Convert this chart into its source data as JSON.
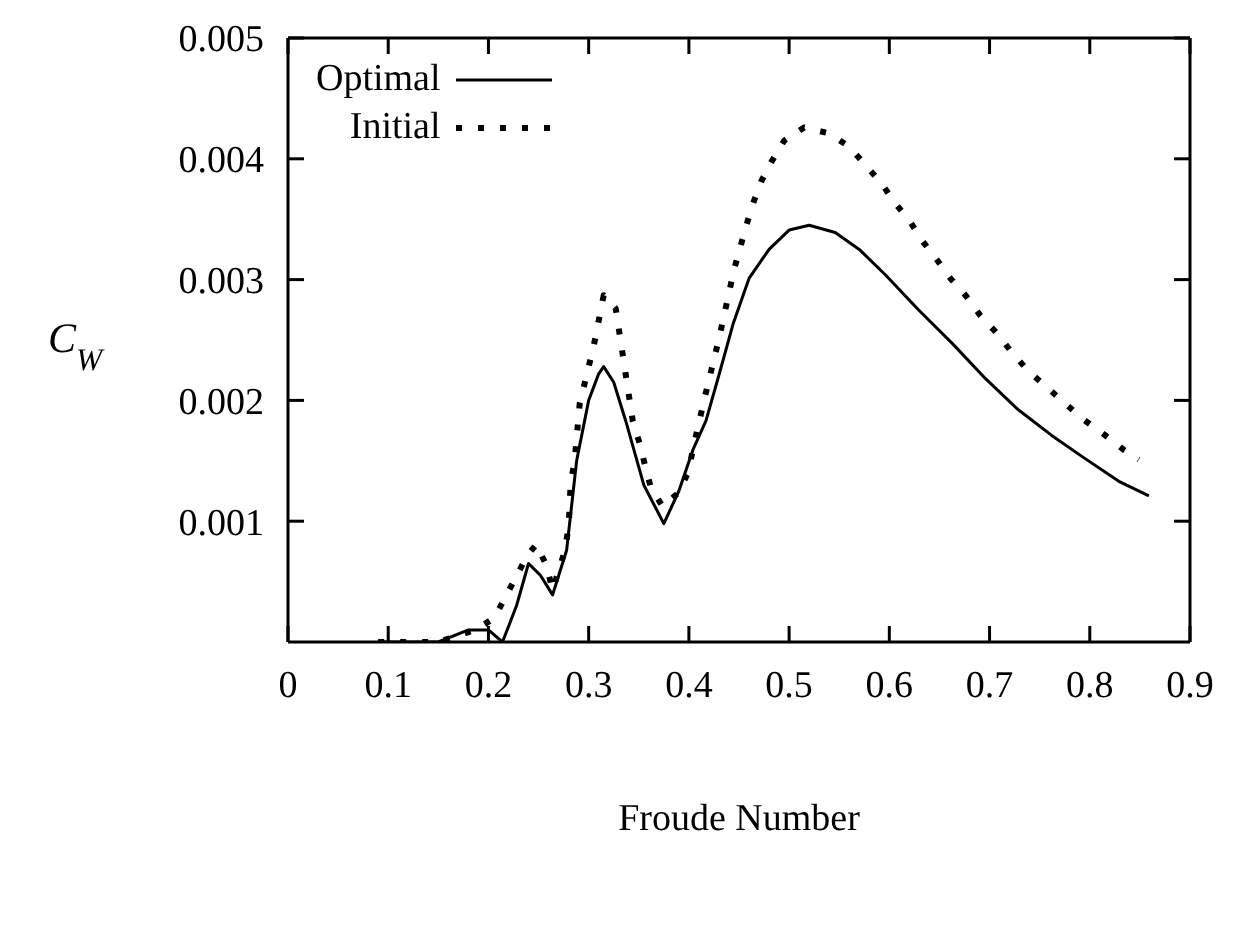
{
  "chart_data": {
    "type": "line",
    "xlabel": "Froude Number",
    "ylabel": "C$_{W}$",
    "xlim": [
      0,
      0.9
    ],
    "xticks": [
      0,
      0.1,
      0.2,
      0.3,
      0.4,
      0.5,
      0.6,
      0.7,
      0.8,
      0.9
    ],
    "ylim": [
      0,
      0.005
    ],
    "yticks": [
      0.001,
      0.002,
      0.003,
      0.004,
      0.005
    ],
    "legend": "top left",
    "marker": "none",
    "series": [
      {
        "name": "Optimal",
        "color": "#000000",
        "line_style": "solid",
        "x": [
          0.09,
          0.12,
          0.15,
          0.18,
          0.2,
          0.214,
          0.228,
          0.24,
          0.252,
          0.264,
          0.278,
          0.288,
          0.3,
          0.31,
          0.315,
          0.325,
          0.337,
          0.355,
          0.375,
          0.39,
          0.404,
          0.417,
          0.43,
          0.444,
          0.46,
          0.48,
          0.5,
          0.52,
          0.546,
          0.57,
          0.596,
          0.629,
          0.663,
          0.696,
          0.729,
          0.762,
          0.795,
          0.829,
          0.859
        ],
        "values": [
          0,
          0,
          0,
          0.0001,
          0.0001,
          0,
          0.0003,
          0.00065,
          0.00055,
          0.00039,
          0.00076,
          0.0015,
          0.002,
          0.00222,
          0.00228,
          0.00215,
          0.00183,
          0.0013,
          0.00098,
          0.00125,
          0.00159,
          0.00183,
          0.00221,
          0.00263,
          0.00301,
          0.00325,
          0.00341,
          0.00345,
          0.00339,
          0.00325,
          0.00304,
          0.00275,
          0.00247,
          0.00218,
          0.00192,
          0.00171,
          0.00152,
          0.00133,
          0.00121
        ]
      },
      {
        "name": "Initial",
        "color": "#000000",
        "line_style": "dotted",
        "x": [
          0.09,
          0.15,
          0.187,
          0.206,
          0.239,
          0.248,
          0.258,
          0.264,
          0.276,
          0.28,
          0.282,
          0.286,
          0.291,
          0.305,
          0.315,
          0.327,
          0.344,
          0.351,
          0.356,
          0.362,
          0.374,
          0.39,
          0.399,
          0.404,
          0.409,
          0.418,
          0.43,
          0.44,
          0.445,
          0.457,
          0.464,
          0.472,
          0.482,
          0.495,
          0.515,
          0.54,
          0.56,
          0.575,
          0.592,
          0.605,
          0.62,
          0.633,
          0.647,
          0.661,
          0.677,
          0.691,
          0.708,
          0.722,
          0.739,
          0.757,
          0.776,
          0.794,
          0.814,
          0.834,
          0.849
        ],
        "values": [
          0,
          0,
          0.0001,
          0.0002,
          0.00072,
          0.00081,
          0.00063,
          0.00043,
          0.00075,
          0.00095,
          0.00131,
          0.0015,
          0.00197,
          0.00245,
          0.00287,
          0.00276,
          0.00183,
          0.00164,
          0.00147,
          0.00128,
          0.00112,
          0.00124,
          0.0014,
          0.00159,
          0.00178,
          0.0021,
          0.00251,
          0.00289,
          0.00308,
          0.00344,
          0.00363,
          0.00381,
          0.00397,
          0.00415,
          0.00426,
          0.00421,
          0.0041,
          0.00396,
          0.0038,
          0.00364,
          0.00349,
          0.00332,
          0.00317,
          0.00301,
          0.00286,
          0.0027,
          0.00255,
          0.0024,
          0.00224,
          0.00211,
          0.00197,
          0.00184,
          0.00172,
          0.00159,
          0.00151
        ]
      }
    ]
  }
}
